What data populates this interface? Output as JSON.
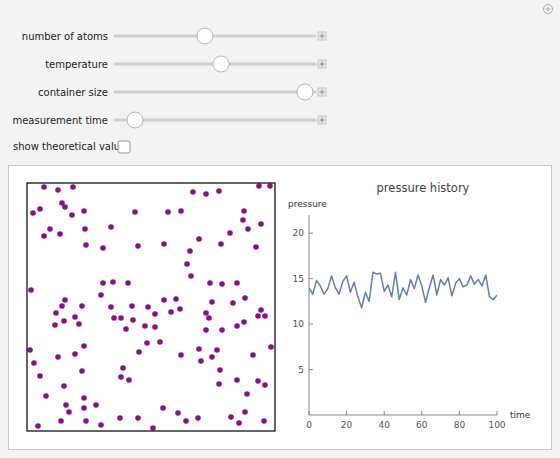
{
  "controls": {
    "sliders": [
      {
        "label": "number of atoms",
        "value": 0.45
      },
      {
        "label": "temperature",
        "value": 0.53
      },
      {
        "label": "container size",
        "value": 0.95
      },
      {
        "label": "measurement time",
        "value": 0.1
      }
    ],
    "checkbox": {
      "label": "show theoretical value",
      "checked": false
    }
  },
  "chart_data": [
    {
      "type": "scatter",
      "x": [
        17,
        31,
        46,
        6,
        13,
        35,
        38,
        45,
        57,
        23,
        17,
        33,
        58,
        59,
        76,
        84,
        108,
        141,
        154,
        166,
        179,
        192,
        232,
        243,
        217,
        216,
        234,
        221,
        229,
        203,
        194,
        172,
        163,
        160,
        164,
        137,
        111,
        76,
        86,
        101,
        74,
        84,
        87,
        38,
        35,
        29,
        37,
        48,
        52,
        55,
        105,
        106,
        121,
        128,
        128,
        118,
        94,
        57,
        48,
        31,
        55,
        37,
        3,
        7,
        13,
        19,
        39,
        57,
        57,
        69,
        42,
        59,
        11,
        34,
        74,
        93,
        111,
        126,
        136,
        151,
        171,
        204,
        212,
        218,
        237,
        238,
        220,
        210,
        192,
        185,
        190,
        174,
        193,
        154,
        133,
        120,
        102,
        96,
        94,
        112,
        149,
        153,
        179,
        182,
        179,
        172,
        183,
        195,
        210,
        185,
        206,
        218,
        234,
        238,
        231,
        217,
        210,
        226,
        244,
        231,
        4,
        28,
        99,
        159,
        195,
        137,
        144
      ],
      "values": [
        244,
        241,
        244,
        218,
        222,
        228,
        224,
        216,
        220,
        202,
        195,
        197,
        202,
        186,
        183,
        204,
        219,
        219,
        220,
        239,
        237,
        240,
        245,
        245,
        220,
        211,
        207,
        202,
        184,
        198,
        187,
        192,
        180,
        167,
        155,
        187,
        185,
        148,
        149,
        148,
        136,
        124,
        113,
        131,
        125,
        118,
        110,
        114,
        107,
        125,
        125,
        111,
        124,
        117,
        104,
        105,
        113,
        85,
        77,
        74,
        60,
        45,
        81,
        68,
        55,
        35,
        26,
        33,
        23,
        26,
        19,
        10,
        5,
        10,
        6,
        13,
        13,
        3,
        23,
        18,
        13,
        14,
        8,
        19,
        10,
        46,
        37,
        51,
        47,
        74,
        81,
        70,
        61,
        76,
        89,
        88,
        51,
        63,
        54,
        79,
        132,
        122,
        118,
        113,
        101,
        82,
        148,
        147,
        148,
        129,
        128,
        133,
        121,
        115,
        115,
        109,
        105,
        76,
        84,
        50,
        141,
        106,
        102,
        10,
        101,
        131,
        119
      ],
      "xlim": [
        0,
        248
      ],
      "ylim": [
        0,
        248
      ],
      "tick_labels": false,
      "color": "#8b108b",
      "marker": "circle"
    },
    {
      "type": "line",
      "title": "pressure history",
      "x_label": "time",
      "y_label": "pressure",
      "x": [
        0,
        2,
        4,
        6,
        8,
        10,
        12,
        14,
        16,
        18,
        20,
        22,
        24,
        26,
        28,
        30,
        32,
        34,
        36,
        38,
        40,
        42,
        44,
        46,
        48,
        50,
        52,
        54,
        56,
        58,
        60,
        62,
        64,
        66,
        68,
        70,
        72,
        74,
        76,
        78,
        80,
        82,
        84,
        86,
        88,
        90,
        92,
        94,
        96,
        98,
        100
      ],
      "values": [
        14,
        13.3,
        14.8,
        14.2,
        13.3,
        13.9,
        15.3,
        14,
        13.3,
        14.7,
        15.3,
        13.5,
        14.6,
        13,
        11.8,
        13.5,
        12.5,
        15.7,
        15.5,
        15.6,
        13.6,
        14.3,
        13,
        15.7,
        12.7,
        14,
        13.2,
        14.9,
        13.9,
        15.4,
        14.2,
        12.4,
        14,
        15.4,
        13.2,
        14.9,
        14.3,
        15.1,
        13.1,
        14.5,
        15,
        14.1,
        14.3,
        15.3,
        14.4,
        14.9,
        14.2,
        15.4,
        13,
        12.7,
        13.2
      ],
      "xlim": [
        0,
        100
      ],
      "ylim": [
        0,
        22
      ],
      "xticks": [
        0,
        20,
        40,
        60,
        80,
        100
      ],
      "yticks": [
        5,
        10,
        15,
        20
      ],
      "color": "#5e81b5"
    }
  ]
}
